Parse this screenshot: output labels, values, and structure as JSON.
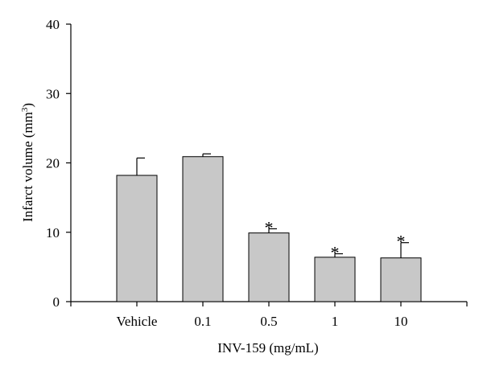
{
  "chart_data": {
    "type": "bar",
    "categories": [
      "Vehicle",
      "0.1",
      "0.5",
      "1",
      "10"
    ],
    "values": [
      18.2,
      20.9,
      9.9,
      6.4,
      6.3
    ],
    "error_upper": [
      20.7,
      21.3,
      10.5,
      6.9,
      8.5
    ],
    "significance": [
      "",
      "",
      "*",
      "*",
      "*"
    ],
    "xlabel": "INV-159 (mg/mL)",
    "ylabel": "Infarct volume (mm",
    "ylabel_superscript": "3",
    "ylabel_suffix": ")",
    "ylim": [
      0,
      40
    ],
    "yticks": [
      0,
      10,
      20,
      30,
      40
    ],
    "grid": false,
    "bar_color": "#c8c8c8"
  }
}
